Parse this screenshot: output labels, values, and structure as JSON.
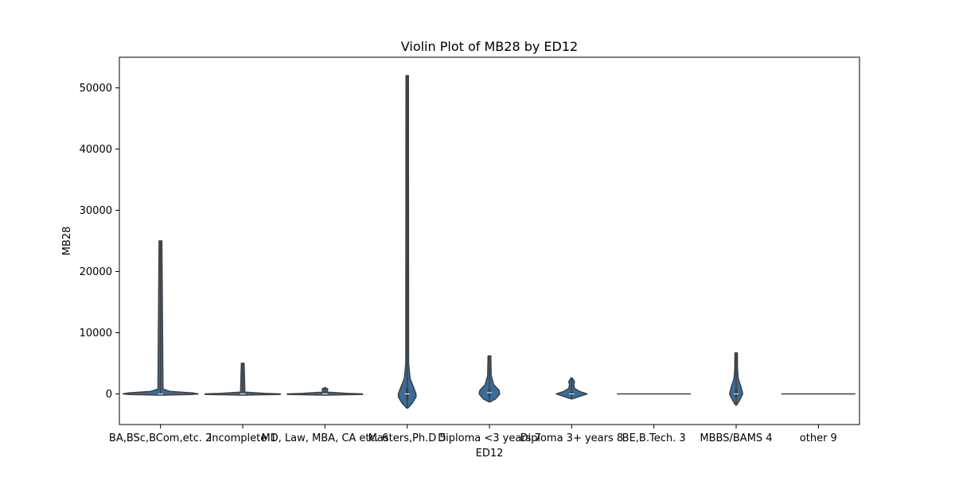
{
  "chart_data": {
    "type": "violin",
    "title": "Violin Plot of MB28 by ED12",
    "xlabel": "ED12",
    "ylabel": "MB28",
    "ylim": [
      -5000,
      55000
    ],
    "yticks": [
      0,
      10000,
      20000,
      30000,
      40000,
      50000
    ],
    "grid": false,
    "colors": {
      "violin_fill": "#3b6c9a",
      "violin_edge": "#3f3f3f",
      "axis": "#000000"
    },
    "categories": [
      "BA,BSc,BCom,etc. 2",
      "Incomplete 1",
      "MD, Law, MBA, CA etc. 6",
      "Masters,Ph.D 5",
      "Diploma <3 years 7",
      "Diploma 3+ years 8",
      "BE,B.Tech. 3",
      "MBBS/BAMS 4",
      "other 9"
    ],
    "violins": [
      {
        "min": -200,
        "max": 25000,
        "median": 0,
        "q1": -50,
        "q3": 150,
        "profile": [
          [
            -200,
            0.0
          ],
          [
            -100,
            0.8
          ],
          [
            0,
            1.0
          ],
          [
            150,
            0.85
          ],
          [
            400,
            0.25
          ],
          [
            800,
            0.05
          ],
          [
            25000,
            0.02
          ]
        ]
      },
      {
        "min": -200,
        "max": 5000,
        "median": 0,
        "q1": -50,
        "q3": 50,
        "profile": [
          [
            -200,
            0.0
          ],
          [
            -80,
            1.0
          ],
          [
            0,
            1.0
          ],
          [
            80,
            0.6
          ],
          [
            300,
            0.04
          ],
          [
            5000,
            0.02
          ]
        ]
      },
      {
        "min": -200,
        "max": 1000,
        "median": 0,
        "q1": -50,
        "q3": 50,
        "profile": [
          [
            -200,
            0.0
          ],
          [
            -80,
            1.0
          ],
          [
            0,
            1.0
          ],
          [
            80,
            0.6
          ],
          [
            300,
            0.04
          ],
          [
            800,
            0.06
          ],
          [
            1000,
            0.0
          ]
        ]
      },
      {
        "min": -2300,
        "max": 52000,
        "median": 0,
        "q1": -1000,
        "q3": 1000,
        "profile": [
          [
            -2300,
            0.0
          ],
          [
            -1500,
            0.12
          ],
          [
            -500,
            0.22
          ],
          [
            0,
            0.22
          ],
          [
            1000,
            0.16
          ],
          [
            2500,
            0.06
          ],
          [
            5000,
            0.02
          ],
          [
            52000,
            0.015
          ]
        ]
      },
      {
        "min": -1300,
        "max": 6200,
        "median": 200,
        "q1": -400,
        "q3": 800,
        "profile": [
          [
            -1300,
            0.0
          ],
          [
            -800,
            0.15
          ],
          [
            0,
            0.26
          ],
          [
            600,
            0.24
          ],
          [
            1500,
            0.1
          ],
          [
            3000,
            0.03
          ],
          [
            6200,
            0.02
          ]
        ]
      },
      {
        "min": -800,
        "max": 2600,
        "median": 0,
        "q1": -300,
        "q3": 300,
        "profile": [
          [
            -800,
            0.0
          ],
          [
            -400,
            0.2
          ],
          [
            0,
            0.4
          ],
          [
            400,
            0.2
          ],
          [
            900,
            0.06
          ],
          [
            1500,
            0.04
          ],
          [
            2000,
            0.06
          ],
          [
            2600,
            0.0
          ]
        ]
      },
      {
        "min": 0,
        "max": 0,
        "median": 0,
        "q1": 0,
        "q3": 0,
        "flat": true,
        "profile": []
      },
      {
        "min": -1800,
        "max": 6700,
        "median": 0,
        "q1": -500,
        "q3": 800,
        "profile": [
          [
            -1800,
            0.0
          ],
          [
            -1000,
            0.08
          ],
          [
            0,
            0.16
          ],
          [
            1000,
            0.12
          ],
          [
            2500,
            0.04
          ],
          [
            4000,
            0.02
          ],
          [
            6700,
            0.015
          ]
        ]
      },
      {
        "min": 0,
        "max": 0,
        "median": 0,
        "q1": 0,
        "q3": 0,
        "flat": true,
        "profile": []
      }
    ]
  }
}
